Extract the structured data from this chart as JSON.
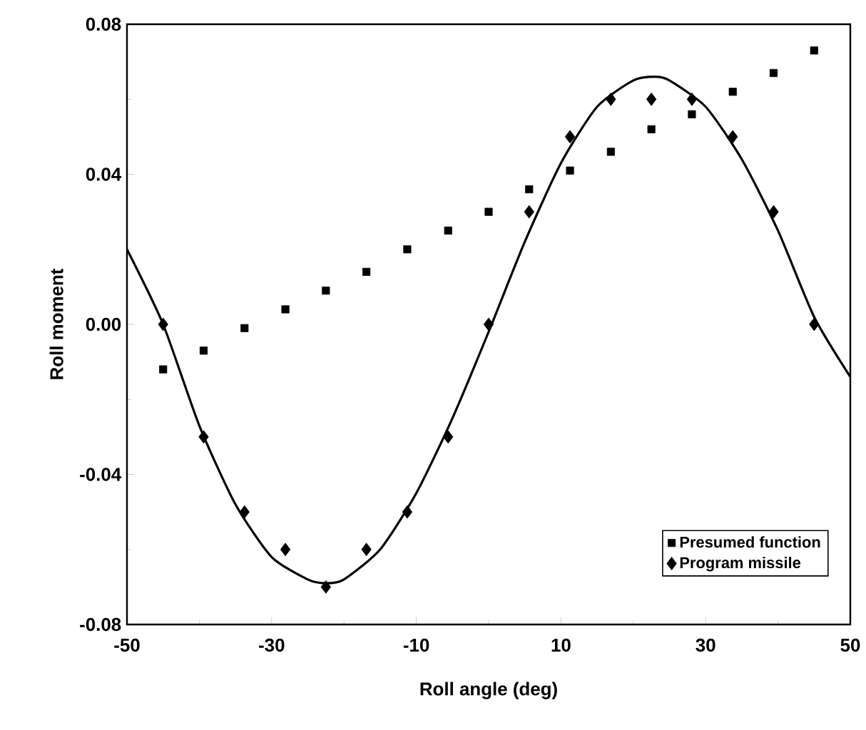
{
  "chart_data": {
    "type": "scatter",
    "xlabel": "Roll angle (deg)",
    "ylabel": "Roll moment",
    "xlim": [
      -50,
      50
    ],
    "xticks": [
      -50,
      -30,
      -10,
      10,
      30,
      50
    ],
    "ylim": [
      -0.08,
      0.08
    ],
    "yticks": [
      {
        "value": -0.08,
        "label": "-0.08"
      },
      {
        "value": -0.04,
        "label": "-0.04"
      },
      {
        "value": 0,
        "label": "0.00"
      },
      {
        "value": 0.04,
        "label": "0.04"
      },
      {
        "value": 0.08,
        "label": "0.08"
      }
    ],
    "grid": false,
    "legend": "bottom right",
    "series": [
      {
        "name": "Presumed function",
        "marker": "square",
        "color": "#000000",
        "x": [
          -45,
          -39.4,
          -33.75,
          -28.1,
          -22.5,
          -16.9,
          -11.25,
          -5.6,
          0,
          5.6,
          11.25,
          16.9,
          22.5,
          28.1,
          33.75,
          39.4,
          45
        ],
        "values": [
          -0.012,
          -0.007,
          -0.001,
          0.004,
          0.009,
          0.014,
          0.02,
          0.025,
          0.03,
          0.036,
          0.041,
          0.046,
          0.052,
          0.056,
          0.062,
          0.067,
          0.073
        ]
      },
      {
        "name": "Program missile",
        "marker": "diamond",
        "color": "#000000",
        "x": [
          -45,
          -39.4,
          -33.75,
          -28.1,
          -22.5,
          -16.9,
          -11.25,
          -5.6,
          0,
          5.6,
          11.25,
          16.9,
          22.5,
          28.1,
          33.75,
          39.4,
          45
        ],
        "values": [
          0,
          -0.03,
          -0.05,
          -0.06,
          -0.07,
          -0.06,
          -0.05,
          -0.03,
          0,
          0.03,
          0.05,
          0.06,
          0.06,
          0.06,
          0.05,
          0.03,
          0
        ]
      },
      {
        "type": "line",
        "line_style": "solid",
        "color": "#000000",
        "x": [
          -50,
          -45,
          -40,
          -35,
          -30,
          -25,
          -22.5,
          -20,
          -15,
          -10,
          -5,
          0,
          5,
          10,
          15,
          20,
          23,
          25,
          30,
          35,
          40,
          45,
          50
        ],
        "values": [
          0.02,
          0.0,
          -0.027,
          -0.048,
          -0.062,
          -0.068,
          -0.069,
          -0.068,
          -0.06,
          -0.045,
          -0.025,
          -0.002,
          0.022,
          0.043,
          0.058,
          0.065,
          0.066,
          0.065,
          0.058,
          0.044,
          0.025,
          0.002,
          -0.014
        ]
      }
    ]
  }
}
